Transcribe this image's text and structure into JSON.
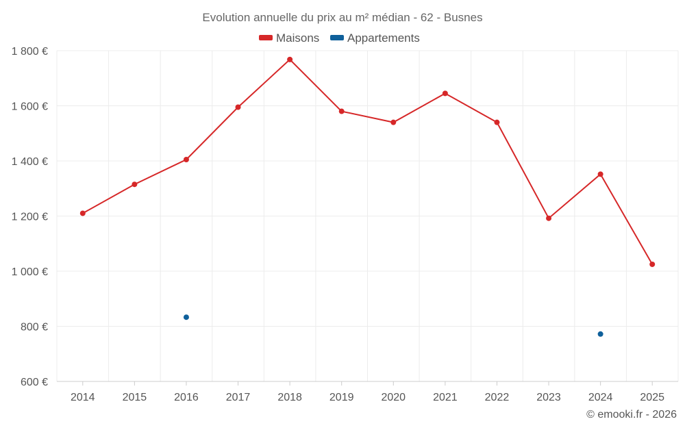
{
  "chart_data": {
    "type": "line",
    "title": "Evolution annuelle du prix au m² médian - 62 - Busnes",
    "categories": [
      "2014",
      "2015",
      "2016",
      "2017",
      "2018",
      "2019",
      "2020",
      "2021",
      "2022",
      "2023",
      "2024",
      "2025"
    ],
    "series": [
      {
        "name": "Maisons",
        "color": "#d62728",
        "values": [
          1210,
          1315,
          1405,
          1595,
          1768,
          1580,
          1540,
          1645,
          1540,
          1192,
          1352,
          1025
        ]
      },
      {
        "name": "Appartements",
        "color": "#0f609b",
        "values": [
          null,
          null,
          833,
          null,
          null,
          null,
          null,
          null,
          null,
          null,
          772,
          null
        ]
      }
    ],
    "yticks": [
      600,
      800,
      1000,
      1200,
      1400,
      1600,
      1800
    ],
    "ytick_labels": [
      "600 €",
      "800 €",
      "1 000 €",
      "1 200 €",
      "1 400 €",
      "1 600 €",
      "1 800 €"
    ],
    "ylim": [
      600,
      1800
    ],
    "xlabel": "",
    "ylabel": "",
    "grid": true,
    "legend_position": "top-center"
  },
  "credit": "© emooki.fr - 2026"
}
